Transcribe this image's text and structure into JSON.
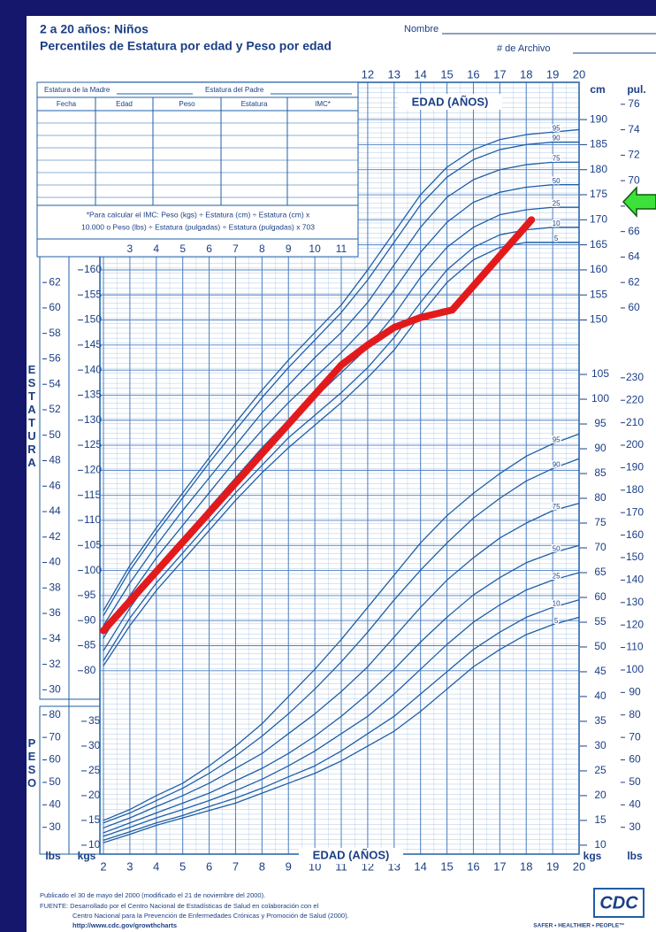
{
  "header": {
    "title": "2 a 20 años: Niños",
    "subtitle": "Percentiles de Estatura por edad y Peso por edad",
    "name_label": "Nombre",
    "record_label": "# de Archivo"
  },
  "record_table": {
    "mother": "Estatura de la Madre",
    "father": "Estatura del Padre",
    "columns": [
      "Fecha",
      "Edad",
      "Peso",
      "Estatura",
      "IMC*"
    ],
    "note": [
      "*Para calcular el IMC: Peso (kgs) ÷ Estatura (cm) ÷ Estatura (cm) x",
      "10.000 o Peso (lbs) ÷ Estatura (pulgadas) ÷ Estatura (pulgadas) x 703"
    ]
  },
  "chart_data": {
    "type": "line",
    "x_label": "EDAD (AÑOS)",
    "y_label": "ESTATURA",
    "y2_label": "PESO",
    "cm_label": "cm",
    "in_label": "pul.",
    "kg_label": "kgs",
    "lb_label": "lbs",
    "x": [
      2,
      3,
      4,
      5,
      6,
      7,
      8,
      9,
      10,
      11,
      12,
      13,
      14,
      15,
      16,
      17,
      18,
      19,
      20
    ],
    "xlim": [
      2,
      20
    ],
    "xticks": [
      2,
      3,
      4,
      5,
      6,
      7,
      8,
      9,
      10,
      11,
      12,
      13,
      14,
      15,
      16,
      17,
      18,
      19,
      20
    ],
    "ylim": [
      43.4,
      196.2
    ],
    "yticks": [
      80,
      85,
      90,
      95,
      100,
      105,
      110,
      115,
      120,
      125,
      130,
      135,
      140,
      145,
      150,
      155,
      160
    ],
    "yticks_right": [
      150,
      155,
      160,
      165,
      170,
      175,
      180,
      185,
      190
    ],
    "y_in_lim": [
      17.09,
      77.24
    ],
    "y_in_ticks": [
      30,
      32,
      34,
      36,
      38,
      40,
      42,
      44,
      46,
      48,
      50,
      52,
      54,
      56,
      58,
      60,
      62
    ],
    "y_in_ticks_right": [
      60,
      62,
      64,
      66,
      68,
      70,
      72,
      74,
      76
    ],
    "y2lim": [
      8.2,
      162.7
    ],
    "y2ticks": [
      10,
      15,
      20,
      25,
      30,
      35
    ],
    "y2ticks_right": [
      10,
      15,
      20,
      25,
      30,
      35,
      40,
      45,
      50,
      55,
      60,
      65,
      70,
      75,
      80,
      85,
      90,
      95,
      100,
      105
    ],
    "y2_lb_lim": [
      18.08,
      358.7
    ],
    "y2_lb_ticks": [
      30,
      40,
      50,
      60,
      70,
      80
    ],
    "y2_lb_ticks_right": [
      30,
      40,
      50,
      60,
      70,
      80,
      90,
      100,
      110,
      120,
      130,
      140,
      150,
      160,
      170,
      180,
      190,
      200,
      210,
      220,
      230
    ],
    "grid": true,
    "series": [
      {
        "name": "5",
        "color": "#1f5fa6",
        "values": [
          81,
          89,
          96,
          102,
          108,
          114,
          119.5,
          124.5,
          129,
          133.5,
          138.5,
          144,
          151,
          157.5,
          162,
          164.5,
          165.5,
          165.5,
          165.5
        ]
      },
      {
        "name": "10",
        "color": "#1f5fa6",
        "values": [
          82,
          90.5,
          97.5,
          103.5,
          109.5,
          115.5,
          121,
          126.5,
          131,
          135.5,
          140.5,
          146.5,
          153.5,
          160,
          164.5,
          167,
          168,
          168.5,
          168.5
        ]
      },
      {
        "name": "25",
        "color": "#1f5fa6",
        "values": [
          84,
          92.5,
          100,
          106,
          112.5,
          118.5,
          124.5,
          130,
          134.5,
          139.5,
          144.5,
          151,
          158.5,
          164.5,
          168.5,
          171,
          172,
          172.5,
          172.5
        ]
      },
      {
        "name": "50",
        "color": "#1f5fa6",
        "values": [
          86.5,
          95,
          102.5,
          109,
          115.5,
          122,
          128,
          133.5,
          138.5,
          143.5,
          149,
          156,
          163.5,
          169.5,
          173.5,
          175.5,
          176.5,
          177,
          177
        ]
      },
      {
        "name": "75",
        "color": "#1f5fa6",
        "values": [
          89,
          97.5,
          105,
          112,
          118.5,
          125,
          131.5,
          137,
          142.5,
          147.5,
          153.5,
          161,
          168.5,
          174.5,
          178,
          180,
          181,
          181.5,
          181.5
        ]
      },
      {
        "name": "90",
        "color": "#1f5fa6",
        "values": [
          91,
          100,
          107.5,
          114.5,
          121.5,
          128,
          134.5,
          140.5,
          146,
          151.5,
          158,
          165.5,
          173,
          178.5,
          182,
          184,
          185,
          185.5,
          185.5
        ]
      },
      {
        "name": "95",
        "color": "#1f5fa6",
        "values": [
          92,
          101,
          108.5,
          115.5,
          122.5,
          129.5,
          136,
          142,
          147.5,
          153,
          160,
          167.5,
          175,
          180.5,
          184,
          186,
          187,
          187.5,
          188
        ]
      },
      {
        "name": "5",
        "color": "#1f5fa6",
        "axis": "y2",
        "values": [
          10.5,
          12.2,
          14,
          15.5,
          17,
          18.5,
          20.5,
          22.5,
          24.5,
          27,
          30,
          33,
          37,
          41.5,
          46,
          49.5,
          52.5,
          54.5,
          56
        ]
      },
      {
        "name": "10",
        "color": "#1f5fa6",
        "axis": "y2",
        "values": [
          11,
          12.7,
          14.5,
          16,
          17.8,
          19.5,
          21.5,
          23.8,
          26,
          29,
          32.5,
          36,
          40.5,
          45,
          49.5,
          53,
          56,
          58,
          59.5
        ]
      },
      {
        "name": "25",
        "color": "#1f5fa6",
        "axis": "y2",
        "values": [
          11.8,
          13.6,
          15.5,
          17.2,
          19,
          21,
          23.3,
          26,
          29,
          32.5,
          36,
          40.5,
          45.5,
          50.5,
          55,
          58.5,
          61.5,
          63.5,
          65
        ]
      },
      {
        "name": "50",
        "color": "#1f5fa6",
        "axis": "y2",
        "values": [
          12.5,
          14.5,
          16.5,
          18.5,
          20.5,
          23,
          25.5,
          28.5,
          32,
          36,
          40.5,
          45.5,
          51,
          56,
          60.5,
          64,
          67,
          69,
          70.5
        ]
      },
      {
        "name": "75",
        "color": "#1f5fa6",
        "axis": "y2",
        "values": [
          13.5,
          15.5,
          17.8,
          20,
          22.5,
          25.5,
          28.5,
          32.5,
          36.5,
          41,
          46,
          52,
          58,
          63.5,
          68,
          72,
          75,
          77.5,
          79
        ]
      },
      {
        "name": "90",
        "color": "#1f5fa6",
        "axis": "y2",
        "values": [
          14.5,
          16.5,
          19,
          21.5,
          24.5,
          28,
          32,
          36.5,
          41.5,
          47,
          53,
          59.5,
          65.5,
          71,
          76,
          80,
          83.5,
          86,
          88
        ]
      },
      {
        "name": "95",
        "color": "#1f5fa6",
        "axis": "y2",
        "values": [
          15,
          17.2,
          20,
          22.5,
          26,
          30,
          34.5,
          40,
          45.5,
          51.5,
          58,
          64.5,
          71,
          76.5,
          81,
          85,
          88.5,
          91,
          93
        ]
      },
      {
        "color": "#e31a1c",
        "x": [
          2,
          11,
          12,
          13,
          14,
          15.2,
          18.2
        ],
        "values": [
          88,
          141,
          145,
          148.5,
          150.5,
          152,
          170
        ]
      }
    ]
  },
  "footer": {
    "published": "Publicado el 30 de mayo del 2000 (modificado el 21 de noviembre del 2000).",
    "source": [
      "FUENTE: Desarrollado por el Centro Nacional de Estadísticas de Salud en colaboración con el",
      "Centro Nacional para la Prevención de Enfermedades Crónicas y Promoción de Salud (2000).",
      "http://www.cdc.gov/growthcharts"
    ],
    "logo": "CDC",
    "slogan": "SAFER • HEALTHIER • PEOPLE™"
  }
}
